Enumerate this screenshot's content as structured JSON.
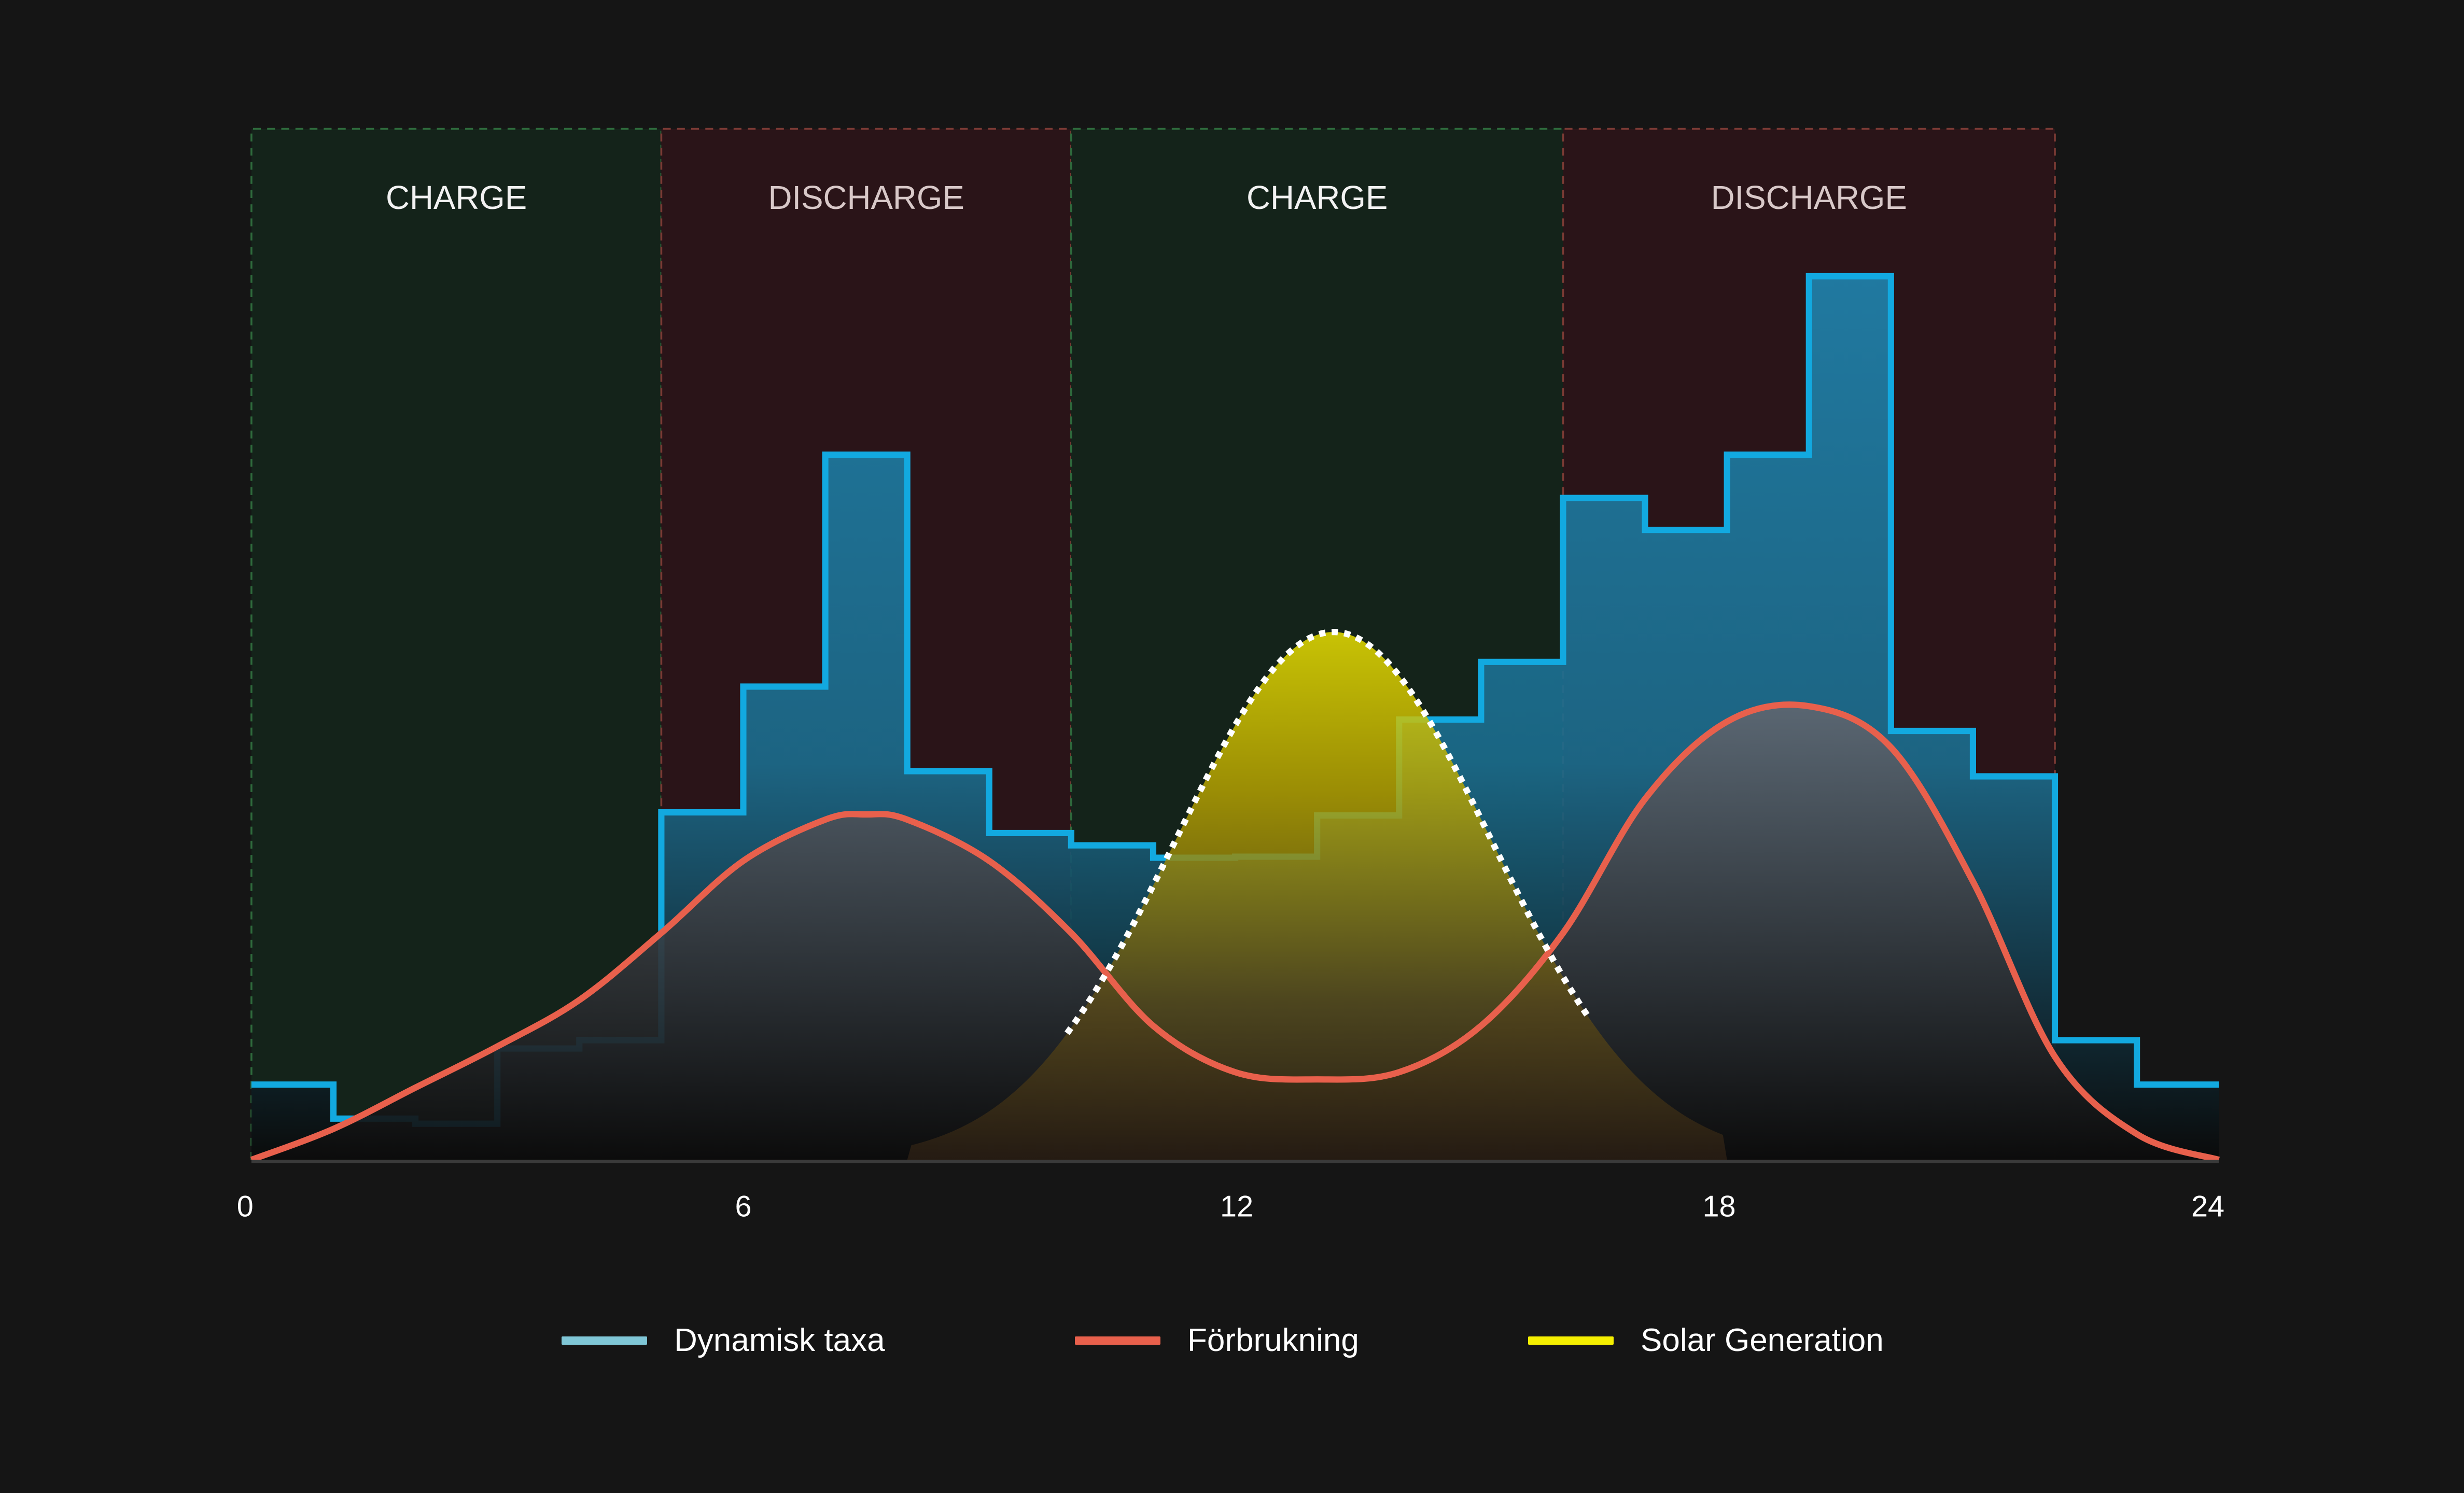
{
  "chart_data": {
    "type": "step+area",
    "xlabel": "",
    "ylabel": "",
    "xlim": [
      0,
      24
    ],
    "ylim": [
      0,
      100
    ],
    "x_ticks": [
      "0",
      "6",
      "12",
      "18",
      "24"
    ],
    "zones": [
      {
        "label": "CHARGE",
        "start": 0,
        "end": 5,
        "kind": "charge"
      },
      {
        "label": "DISCHARGE",
        "start": 5,
        "end": 10,
        "kind": "discharge"
      },
      {
        "label": "CHARGE",
        "start": 10,
        "end": 16,
        "kind": "charge"
      },
      {
        "label": "DISCHARGE",
        "start": 16,
        "end": 22,
        "kind": "discharge"
      }
    ],
    "series": [
      {
        "name": "Dynamisk taxa",
        "type": "step",
        "color": "#12a9e0",
        "hours": [
          0,
          1,
          2,
          3,
          4,
          5,
          6,
          7,
          8,
          9,
          10,
          11,
          12,
          13,
          14,
          15,
          16,
          17,
          18,
          19,
          20,
          21,
          22,
          23
        ],
        "values": [
          7.3,
          4,
          3.5,
          10.8,
          11.6,
          33.7,
          45.9,
          68.4,
          37.7,
          31.7,
          30.5,
          29.3,
          29.4,
          33.4,
          42.7,
          48.3,
          64.2,
          61.1,
          68.4,
          85.7,
          41.6,
          37.2,
          11.6,
          7.3
        ]
      },
      {
        "name": "Förbrukning",
        "type": "line",
        "color": "#e8604c",
        "x": [
          0,
          1,
          2,
          3,
          4,
          5,
          6,
          7,
          7.5,
          8,
          9,
          10,
          11,
          12,
          13,
          14,
          15,
          16,
          17,
          18,
          19,
          20,
          21,
          22,
          23,
          24
        ],
        "values": [
          0,
          3,
          7,
          11,
          15.5,
          22,
          29,
          33,
          33.5,
          33,
          29,
          22,
          13,
          8.5,
          7.8,
          8.5,
          13,
          22,
          35,
          42.5,
          44,
          40,
          27,
          10,
          2.5,
          0
        ]
      },
      {
        "name": "Solar Generation",
        "type": "area",
        "color": "#f2ea00",
        "peak_hour": 13.2,
        "peak_value": 51.2,
        "start": 8,
        "end": 18
      }
    ],
    "legend_position": "bottom-center"
  }
}
